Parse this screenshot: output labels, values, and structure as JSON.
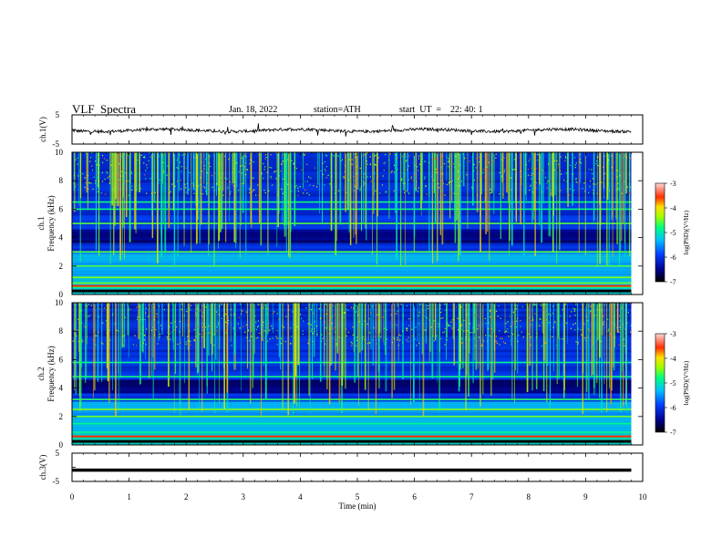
{
  "header": {
    "title": "VLF  Spectra",
    "date": "Jan. 18, 2022",
    "station": "station=ATH",
    "start": "start  UT  =    22: 40: 1"
  },
  "chart_data": [
    {
      "type": "line",
      "ylabel": "ch.1(V)",
      "ylim": [
        -5,
        5
      ],
      "yticks": [
        "5",
        "-5"
      ],
      "xlim": [
        0,
        10
      ],
      "description_values": "noisy waveform near -0.5 V with spikes",
      "baseline": -0.3,
      "color": "#000000"
    },
    {
      "type": "heatmap",
      "ylabel": "ch.1\nFrequency  (kHz)",
      "ylim": [
        0,
        10
      ],
      "yticks": [
        "0",
        "2",
        "4",
        "6",
        "8",
        "10"
      ],
      "xlim": [
        0,
        10
      ],
      "data_extent_min": 9.8,
      "colorbar": {
        "label": "log(PSD)(V²/Hz)",
        "range": [
          -7,
          -3
        ],
        "ticks": [
          "-3",
          "-4",
          "-5",
          "-6",
          "-7"
        ]
      },
      "bands_khz": [
        0.2,
        0.5,
        0.8,
        1.2,
        2.0,
        3.0,
        5.0,
        6.0,
        6.5
      ]
    },
    {
      "type": "heatmap",
      "ylabel": "ch.2\nFrequency  (kHz)",
      "ylim": [
        0,
        10
      ],
      "yticks": [
        "0",
        "2",
        "4",
        "6",
        "8",
        "10"
      ],
      "xlim": [
        0,
        10
      ],
      "data_extent_min": 9.8,
      "colorbar": {
        "label": "log(PSD)(V²/Hz)",
        "range": [
          -7,
          -3
        ],
        "ticks": [
          "-3",
          "-4",
          "-5",
          "-6",
          "-7"
        ]
      },
      "bands_khz": [
        0.3,
        0.9,
        1.5,
        2.0,
        2.5,
        3.2,
        4.8,
        5.8
      ]
    },
    {
      "type": "line",
      "ylabel": "ch.3(V)",
      "ylim": [
        -5,
        5
      ],
      "yticks": [
        "5",
        "-5"
      ],
      "xlim": [
        0,
        10
      ],
      "baseline": -1.0,
      "color": "#000000"
    }
  ],
  "x_axis": {
    "label": "Time  (min)",
    "ticks": [
      "0",
      "1",
      "2",
      "3",
      "4",
      "5",
      "6",
      "7",
      "8",
      "9",
      "10"
    ]
  }
}
